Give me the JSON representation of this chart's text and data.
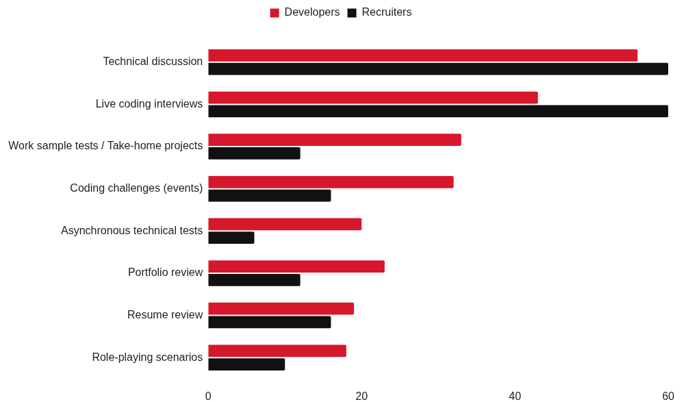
{
  "chart_data": {
    "type": "bar",
    "orientation": "horizontal",
    "legend": "top",
    "grid": false,
    "categories": [
      "Technical discussion",
      "Live coding interviews",
      "Work sample tests / Take-home projects",
      "Coding challenges (events)",
      "Asynchronous technical tests",
      "Portfolio review",
      "Resume review",
      "Role-playing scenarios"
    ],
    "series": [
      {
        "name": "Developers",
        "color": "#d7172b",
        "values": [
          56,
          43,
          33,
          32,
          20,
          23,
          19,
          18
        ]
      },
      {
        "name": "Recruiters",
        "color": "#111111",
        "values": [
          60,
          60,
          12,
          16,
          6,
          12,
          16,
          10
        ]
      }
    ],
    "xlim": [
      0,
      60
    ],
    "xticks": [
      0,
      20,
      40,
      60
    ]
  }
}
